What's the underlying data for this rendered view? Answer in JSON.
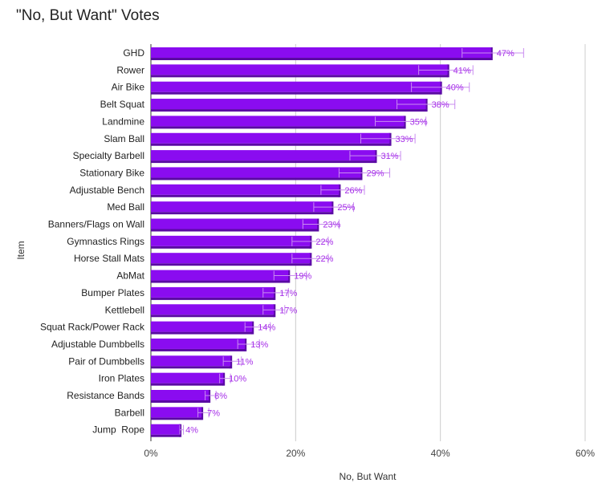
{
  "chart_data": {
    "type": "bar",
    "orientation": "horizontal",
    "title": "\"No, But Want\" Votes",
    "xlabel": "No, But Want",
    "ylabel": "Item",
    "xlim": [
      0,
      60
    ],
    "xticks": [
      "0%",
      "20%",
      "40%",
      "60%"
    ],
    "grid": true,
    "legend": "none",
    "bar_color": "#8a0cf0",
    "bar_shade_color": "#5a0aa3",
    "label_color": "#a62ee8",
    "error_bar_color": "#c98cf0",
    "categories": [
      "GHD",
      "Rower",
      "Air Bike",
      "Belt Squat",
      "Landmine",
      "Slam Ball",
      "Specialty Barbell",
      "Stationary Bike",
      "Adjustable Bench",
      "Med Ball",
      "Banners/Flags on Wall",
      "Gymnastics Rings",
      "Horse Stall Mats",
      "AbMat",
      "Bumper Plates",
      "Kettlebell",
      "Squat Rack/Power Rack",
      "Adjustable Dumbbells",
      "Pair of Dumbbells",
      "Iron Plates",
      "Resistance Bands",
      "Barbell",
      "Jump  Rope"
    ],
    "values": [
      47,
      41,
      40,
      38,
      35,
      33,
      31,
      29,
      26,
      25,
      23,
      22,
      22,
      19,
      17,
      17,
      14,
      13,
      11,
      10,
      8,
      7,
      4
    ],
    "data_labels": [
      "47%",
      "41%",
      "40%",
      "38%",
      "35%",
      "33%",
      "31%",
      "29%",
      "26%",
      "25%",
      "23%",
      "22%",
      "22%",
      "19%",
      "17%",
      "17%",
      "14%",
      "13%",
      "11%",
      "10%",
      "8%",
      "7%",
      "4%"
    ],
    "error_low": [
      43,
      37,
      36,
      34,
      31,
      29,
      27.5,
      26,
      23.5,
      22.5,
      21,
      19.5,
      19.5,
      17,
      15.5,
      15.5,
      13,
      12,
      10,
      9.5,
      7.5,
      6.5,
      4
    ],
    "error_high": [
      51.5,
      44.5,
      44,
      42,
      38,
      36.5,
      34.5,
      33,
      29.5,
      28,
      26,
      24.5,
      24.5,
      21.5,
      19,
      18.5,
      16.5,
      15,
      12.5,
      11,
      9,
      8,
      4.5
    ]
  }
}
